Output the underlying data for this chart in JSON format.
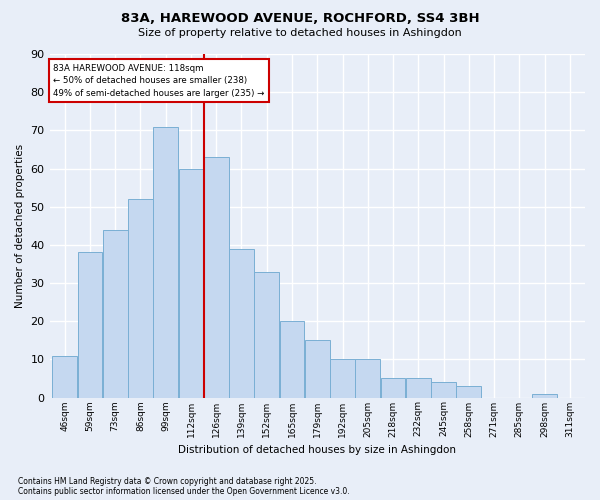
{
  "title": "83A, HAREWOOD AVENUE, ROCHFORD, SS4 3BH",
  "subtitle": "Size of property relative to detached houses in Ashingdon",
  "xlabel": "Distribution of detached houses by size in Ashingdon",
  "ylabel": "Number of detached properties",
  "categories": [
    "46sqm",
    "59sqm",
    "73sqm",
    "86sqm",
    "99sqm",
    "112sqm",
    "126sqm",
    "139sqm",
    "152sqm",
    "165sqm",
    "179sqm",
    "192sqm",
    "205sqm",
    "218sqm",
    "232sqm",
    "245sqm",
    "258sqm",
    "271sqm",
    "285sqm",
    "298sqm",
    "311sqm"
  ],
  "values": [
    11,
    38,
    44,
    52,
    71,
    60,
    63,
    39,
    33,
    20,
    15,
    10,
    10,
    5,
    5,
    4,
    3,
    0,
    0,
    1,
    0
  ],
  "bar_color": "#c5d8f0",
  "bar_edge_color": "#7aafd4",
  "background_color": "#e8eef8",
  "grid_color": "#ffffff",
  "annotation_text_line1": "83A HAREWOOD AVENUE: 118sqm",
  "annotation_text_line2": "← 50% of detached houses are smaller (238)",
  "annotation_text_line3": "49% of semi-detached houses are larger (235) →",
  "annotation_box_facecolor": "#ffffff",
  "annotation_box_edgecolor": "#cc0000",
  "vline_color": "#cc0000",
  "vline_x_index": 5,
  "ylim": [
    0,
    90
  ],
  "yticks": [
    0,
    10,
    20,
    30,
    40,
    50,
    60,
    70,
    80,
    90
  ],
  "footnote1": "Contains HM Land Registry data © Crown copyright and database right 2025.",
  "footnote2": "Contains public sector information licensed under the Open Government Licence v3.0."
}
